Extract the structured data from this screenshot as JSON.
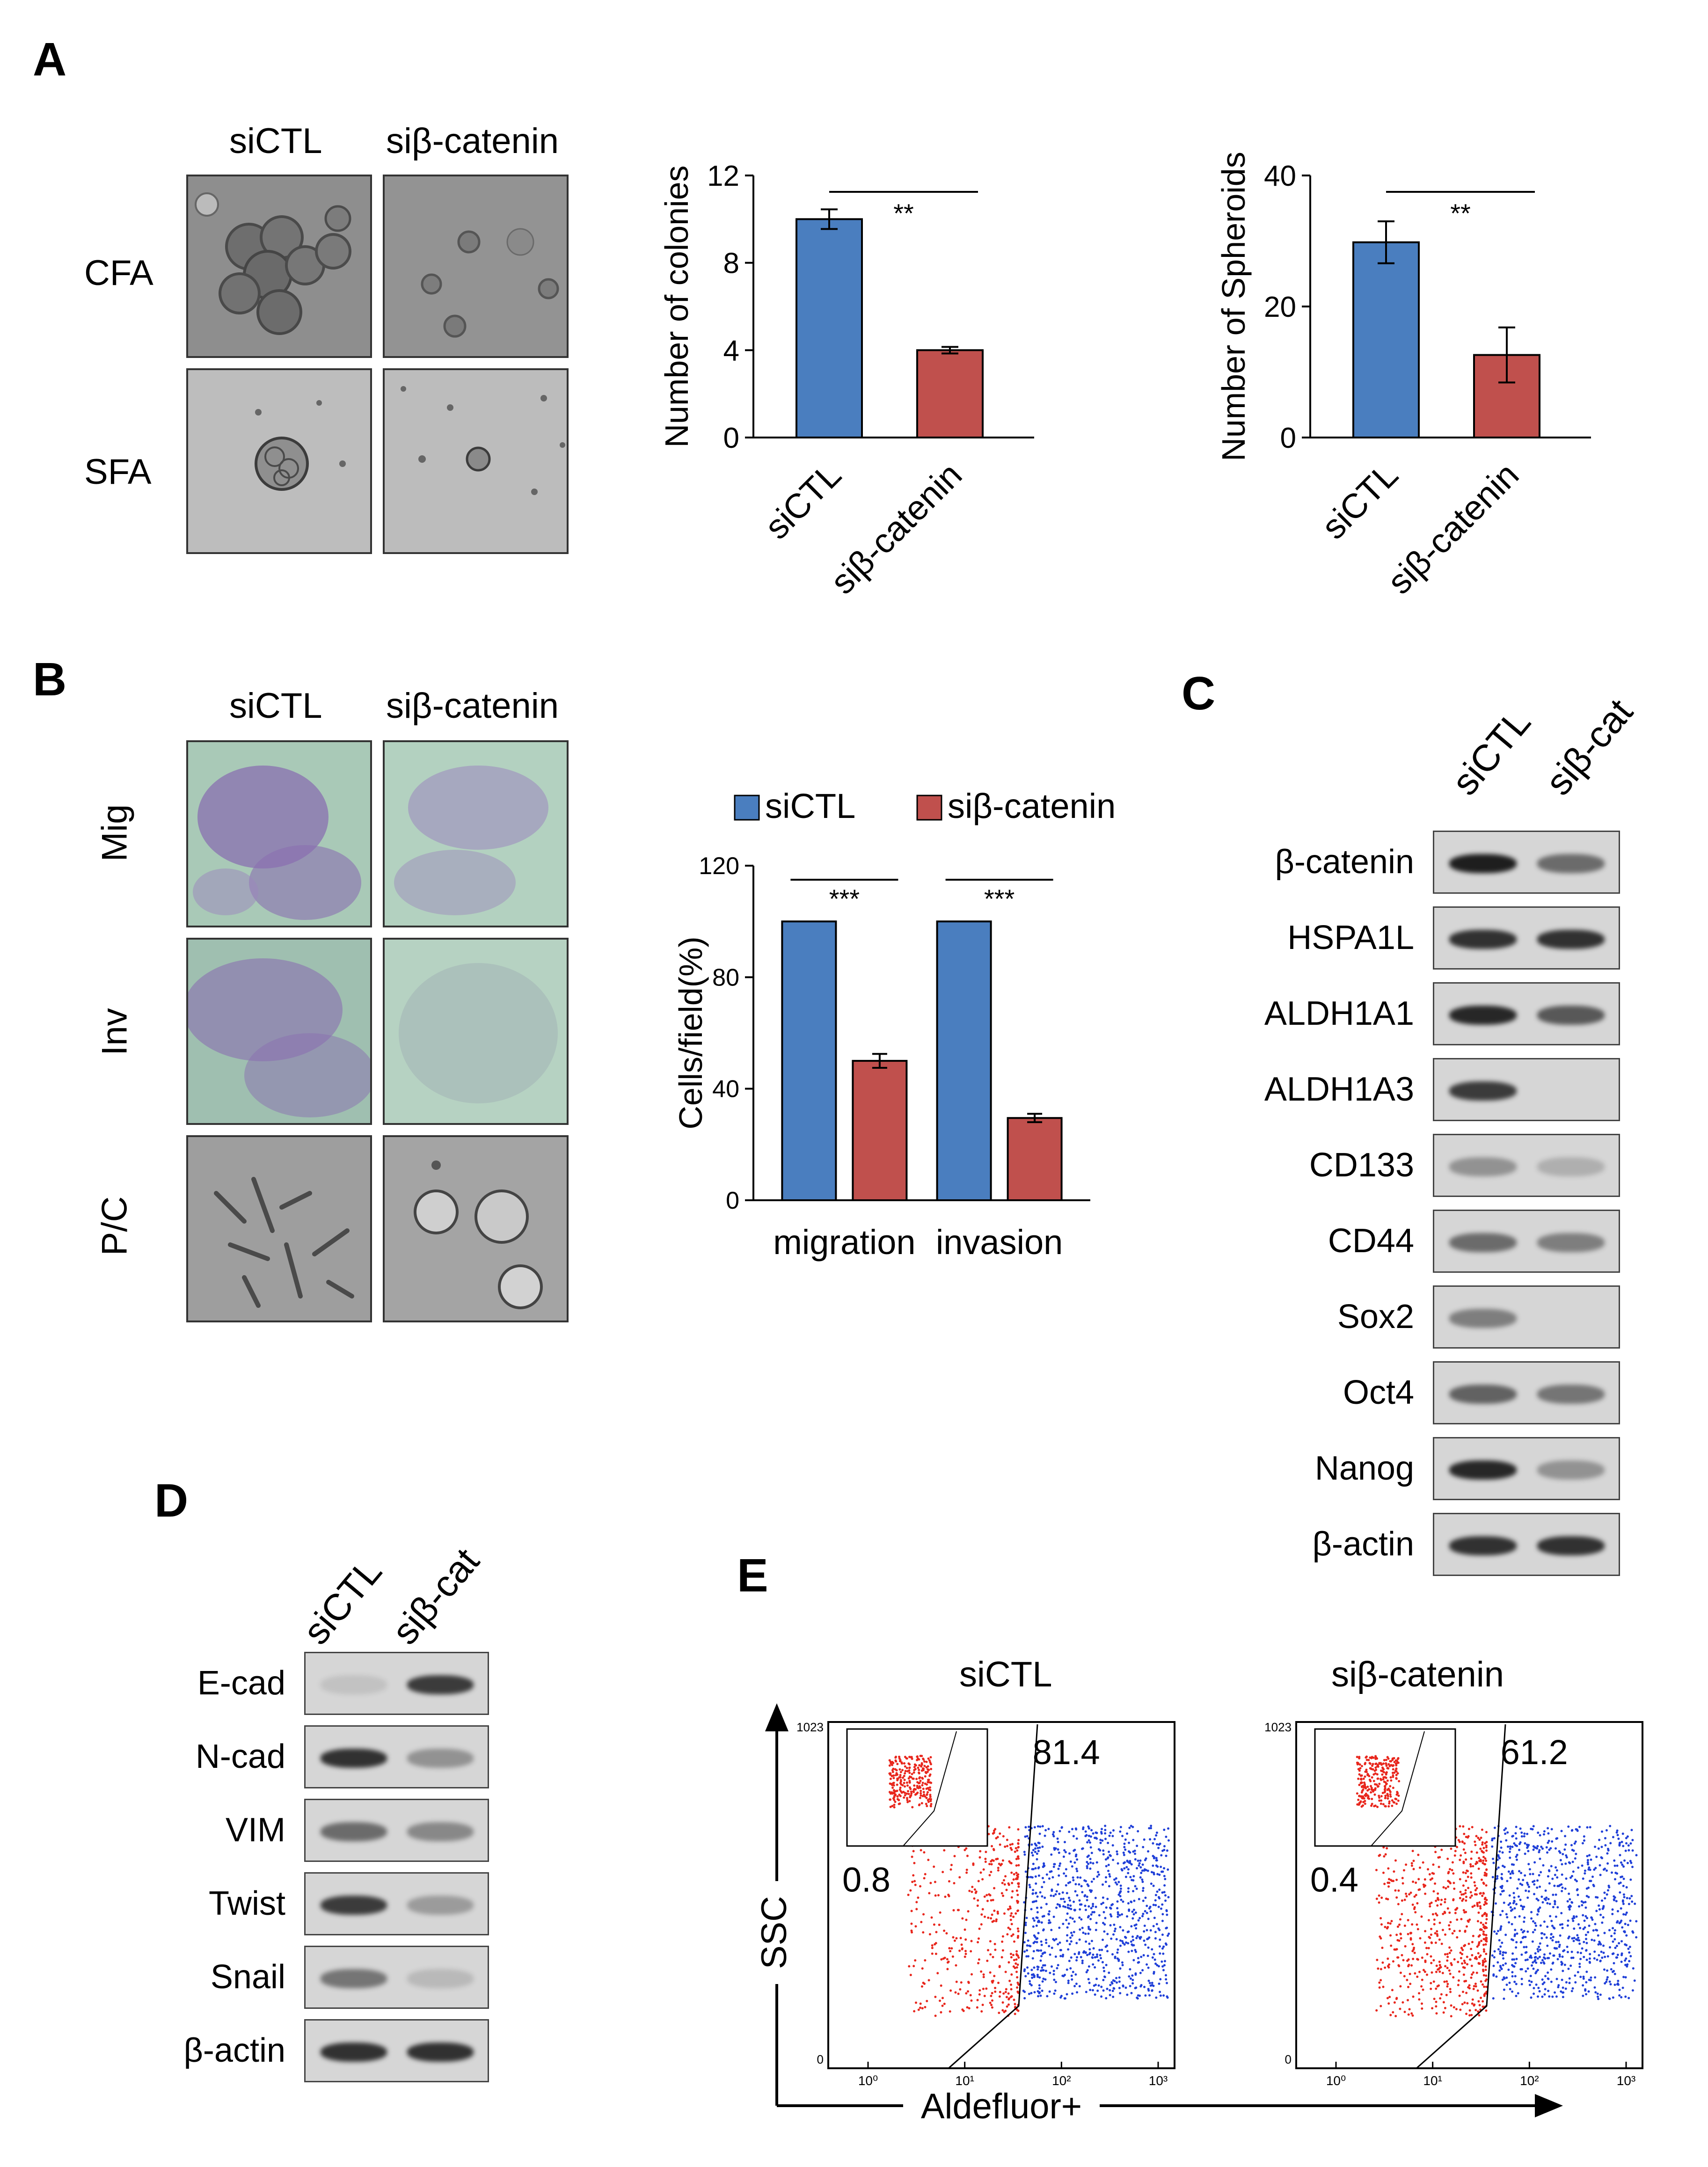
{
  "panels": {
    "A": "A",
    "B": "B",
    "C": "C",
    "D": "D",
    "E": "E"
  },
  "panel_a": {
    "col_labels": [
      "siCTL",
      "siβ-catenin"
    ],
    "row_labels": [
      "CFA",
      "SFA"
    ]
  },
  "panel_b": {
    "col_labels": [
      "siCTL",
      "siβ-catenin"
    ],
    "row_labels": [
      "Mig",
      "Inv",
      "P/C"
    ]
  },
  "panel_c": {
    "lanes": [
      "siCTL",
      "siβ-cat"
    ],
    "bands": [
      "β-catenin",
      "HSPA1L",
      "ALDH1A1",
      "ALDH1A3",
      "CD133",
      "CD44",
      "Sox2",
      "Oct4",
      "Nanog",
      "β-actin"
    ]
  },
  "panel_d": {
    "lanes": [
      "siCTL",
      "siβ-cat"
    ],
    "bands": [
      "E-cad",
      "N-cad",
      "VIM",
      "Twist",
      "Snail",
      "β-actin"
    ]
  },
  "panel_e": {
    "titles": [
      "siCTL",
      "siβ-catenin"
    ],
    "gate_values": [
      {
        "negative": "0.8",
        "positive": "81.4"
      },
      {
        "negative": "0.4",
        "positive": "61.2"
      }
    ],
    "x_axis_label": "Aldefluor+",
    "y_axis_label": "SSC",
    "y_top_tick": "1023",
    "y_bottom_tick": "0",
    "x_ticks": [
      "10⁰",
      "10¹",
      "10²",
      "10³"
    ]
  },
  "chart_data": [
    {
      "type": "bar",
      "categories": [
        "siCTL",
        "siβ-catenin"
      ],
      "values": [
        10,
        4
      ],
      "errors": [
        0.45,
        0.15
      ],
      "colors": [
        "#4a7ebf",
        "#c0504d"
      ],
      "ylabel": "Number of colonies",
      "ylim": [
        0,
        12
      ],
      "yticks": [
        0,
        4,
        8,
        12
      ],
      "significance": "**",
      "grid": false
    },
    {
      "type": "bar",
      "categories": [
        "siCTL",
        "siβ-catenin"
      ],
      "values": [
        29.8,
        12.6
      ],
      "errors": [
        3.2,
        4.2
      ],
      "colors": [
        "#4a7ebf",
        "#c0504d"
      ],
      "ylabel": "Number of Spheroids",
      "ylim": [
        0,
        40
      ],
      "yticks": [
        0,
        20,
        40
      ],
      "significance": "**",
      "grid": false
    },
    {
      "type": "bar",
      "categories": [
        "migration",
        "invasion"
      ],
      "series": [
        {
          "name": "siCTL",
          "values": [
            100,
            100
          ],
          "errors": [
            0,
            0
          ],
          "color": "#4a7ebf"
        },
        {
          "name": "siβ-catenin",
          "values": [
            50,
            29.5
          ],
          "errors": [
            2.5,
            1.5
          ],
          "color": "#c0504d"
        }
      ],
      "ylabel": "Cells/field(%)",
      "ylim": [
        0,
        120
      ],
      "yticks": [
        0,
        40,
        80,
        120
      ],
      "significance": [
        "***",
        "***"
      ],
      "legend": "top",
      "grid": false
    }
  ]
}
